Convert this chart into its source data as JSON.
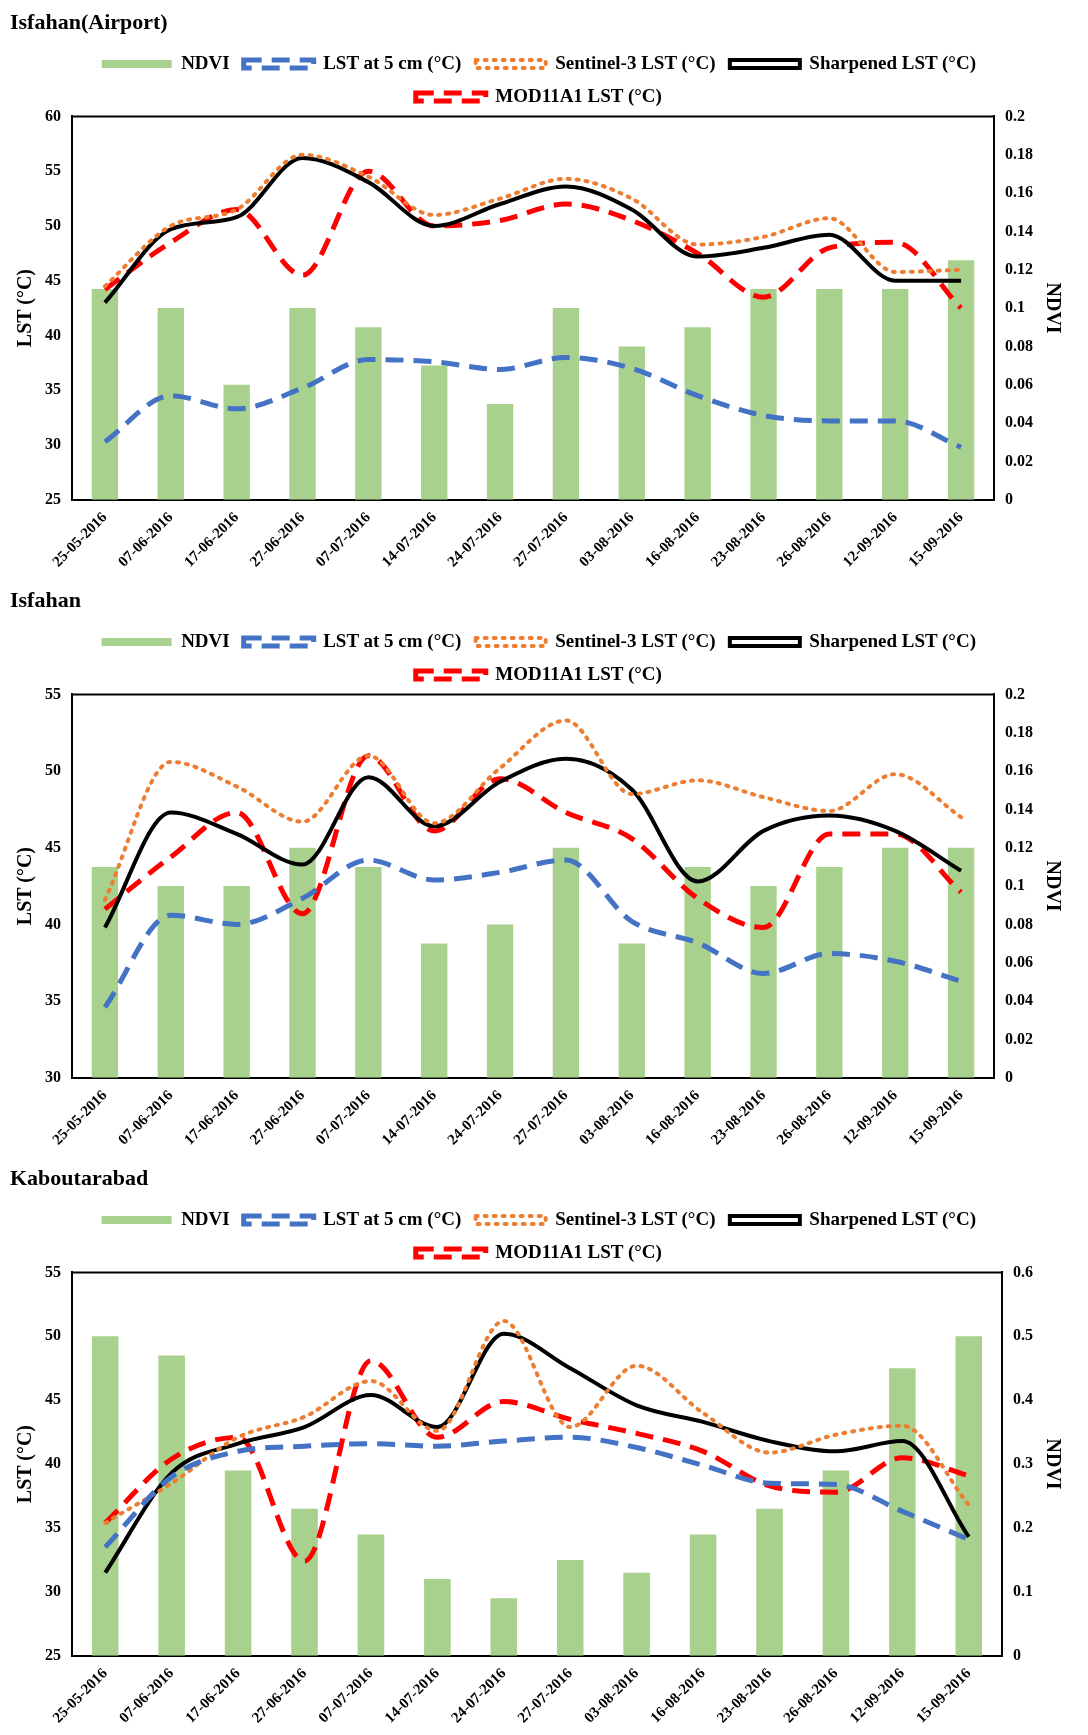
{
  "chart_data": [
    {
      "type": "line",
      "title": "Isfahan(Airport)",
      "ylabel": "LST (°C)",
      "y2label": "NDVI",
      "legend": "top",
      "marker": "none",
      "grid": false,
      "categories": [
        "25-05-2016",
        "07-06-2016",
        "17-06-2016",
        "27-06-2016",
        "07-07-2016",
        "14-07-2016",
        "24-07-2016",
        "27-07-2016",
        "03-08-2016",
        "16-08-2016",
        "23-08-2016",
        "26-08-2016",
        "12-09-2016",
        "15-09-2016"
      ],
      "ylim": [
        25,
        60
      ],
      "yticks": [
        25,
        30,
        35,
        40,
        45,
        50,
        55,
        60
      ],
      "y2lim": [
        0,
        0.2
      ],
      "y2ticks": [
        0,
        0.02,
        0.04,
        0.06,
        0.08,
        0.1,
        0.12,
        0.14,
        0.16,
        0.18,
        0.2
      ],
      "series": [
        {
          "name": "NDVI",
          "type": "bar",
          "axis": "y2",
          "color": "#a9d18e",
          "values": [
            0.11,
            0.1,
            0.06,
            0.1,
            0.09,
            0.07,
            0.05,
            0.1,
            0.08,
            0.09,
            0.11,
            0.11,
            0.11,
            0.125
          ]
        },
        {
          "name": "LST at 5 cm (°C)",
          "color": "#4472c4",
          "line_style": "dashed",
          "values": [
            30.3,
            34.5,
            33.3,
            35.2,
            37.8,
            37.6,
            36.9,
            38,
            37,
            34.5,
            32.7,
            32.2,
            32.2,
            29.8
          ]
        },
        {
          "name": "Sentinel-3 LST (°C)",
          "color": "#ed7d31",
          "line_style": "dotted",
          "values": [
            44.5,
            50,
            51.5,
            56.5,
            54.5,
            51,
            52.5,
            54.3,
            52.5,
            48.3,
            49,
            50.7,
            45.8,
            46
          ]
        },
        {
          "name": "Sharpened LST (°C)",
          "color": "#000000",
          "line_style": "solid",
          "values": [
            43,
            49.7,
            50.8,
            56.2,
            54,
            50,
            52,
            53.6,
            51.5,
            47.2,
            48,
            49.2,
            45,
            45
          ]
        },
        {
          "name": "MOD11A1 LST (°C)",
          "color": "#ff0000",
          "line_style": "dashed",
          "values": [
            44.2,
            48.5,
            51.5,
            45.5,
            55,
            50,
            50.5,
            52,
            50.5,
            47.5,
            43.5,
            48,
            48.5,
            42.5
          ]
        }
      ]
    },
    {
      "type": "line",
      "title": "Isfahan",
      "ylabel": "LST (°C)",
      "y2label": "NDVI",
      "legend": "top",
      "marker": "none",
      "grid": false,
      "categories": [
        "25-05-2016",
        "07-06-2016",
        "17-06-2016",
        "27-06-2016",
        "07-07-2016",
        "14-07-2016",
        "24-07-2016",
        "27-07-2016",
        "03-08-2016",
        "16-08-2016",
        "23-08-2016",
        "26-08-2016",
        "12-09-2016",
        "15-09-2016"
      ],
      "ylim": [
        30,
        55
      ],
      "yticks": [
        30,
        35,
        40,
        45,
        50,
        55
      ],
      "y2lim": [
        0,
        0.2
      ],
      "y2ticks": [
        0,
        0.02,
        0.04,
        0.06,
        0.08,
        0.1,
        0.12,
        0.14,
        0.16,
        0.18,
        0.2
      ],
      "series": [
        {
          "name": "NDVI",
          "type": "bar",
          "axis": "y2",
          "color": "#a9d18e",
          "values": [
            0.11,
            0.1,
            0.1,
            0.12,
            0.11,
            0.07,
            0.08,
            0.12,
            0.07,
            0.11,
            0.1,
            0.11,
            0.12,
            0.12
          ]
        },
        {
          "name": "LST at 5 cm (°C)",
          "color": "#4472c4",
          "line_style": "dashed",
          "values": [
            34.6,
            40.6,
            40,
            41.7,
            44.2,
            42.9,
            43.4,
            44.2,
            40.2,
            38.8,
            36.8,
            38.1,
            37.6,
            36.3
          ]
        },
        {
          "name": "Sentinel-3 LST (°C)",
          "color": "#ed7d31",
          "line_style": "dotted",
          "values": [
            41.6,
            50.6,
            49,
            46.7,
            51,
            46.6,
            50.2,
            53.3,
            48.5,
            49.4,
            48.3,
            47.4,
            49.8,
            47
          ]
        },
        {
          "name": "Sharpened LST (°C)",
          "color": "#000000",
          "line_style": "solid",
          "values": [
            39.8,
            47.3,
            45.9,
            43.9,
            49.6,
            46.4,
            49.3,
            50.8,
            48.8,
            42.8,
            46.1,
            47.1,
            46.1,
            43.5
          ]
        },
        {
          "name": "MOD11A1 LST (°C)",
          "color": "#ff0000",
          "line_style": "dashed",
          "values": [
            41,
            44.4,
            47.3,
            40.7,
            51,
            46.1,
            49.5,
            47.3,
            45.6,
            41.7,
            39.8,
            45.9,
            45.9,
            42.1
          ]
        }
      ]
    },
    {
      "type": "line",
      "title": "Kaboutarabad",
      "ylabel": "LST (°C)",
      "y2label": "NDVI",
      "legend": "top",
      "marker": "none",
      "grid": false,
      "categories": [
        "25-05-2016",
        "07-06-2016",
        "17-06-2016",
        "27-06-2016",
        "07-07-2016",
        "14-07-2016",
        "24-07-2016",
        "27-07-2016",
        "03-08-2016",
        "16-08-2016",
        "23-08-2016",
        "26-08-2016",
        "12-09-2016",
        "15-09-2016"
      ],
      "ylim": [
        25,
        55
      ],
      "yticks": [
        25,
        30,
        35,
        40,
        45,
        50,
        55
      ],
      "y2lim": [
        0,
        0.6
      ],
      "y2ticks": [
        0,
        0.1,
        0.2,
        0.3,
        0.4,
        0.5,
        0.6
      ],
      "series": [
        {
          "name": "NDVI",
          "type": "bar",
          "axis": "y2",
          "color": "#a9d18e",
          "values": [
            0.5,
            0.47,
            0.29,
            0.23,
            0.19,
            0.12,
            0.09,
            0.15,
            0.13,
            0.19,
            0.23,
            0.29,
            0.45,
            0.5
          ]
        },
        {
          "name": "LST at 5 cm (°C)",
          "color": "#4472c4",
          "line_style": "dashed",
          "values": [
            33.5,
            39,
            41,
            41.4,
            41.6,
            41.4,
            41.8,
            42.1,
            41.3,
            39.9,
            38.5,
            38.4,
            36.3,
            34.1
          ]
        },
        {
          "name": "Sentinel-3 LST (°C)",
          "color": "#ed7d31",
          "line_style": "dotted",
          "values": [
            35.4,
            38.5,
            42.1,
            43.7,
            46.5,
            42.6,
            51.2,
            42.9,
            47.7,
            44,
            40.9,
            42.3,
            43,
            36.8
          ]
        },
        {
          "name": "Sharpened LST (°C)",
          "color": "#000000",
          "line_style": "solid",
          "values": [
            31.5,
            39.3,
            41.6,
            42.9,
            45.4,
            42.9,
            50.2,
            47.5,
            44.6,
            43.3,
            41.8,
            41,
            41.8,
            34.3
          ]
        },
        {
          "name": "MOD11A1 LST (°C)",
          "color": "#ff0000",
          "line_style": "dashed",
          "values": [
            35.4,
            40.4,
            42.1,
            32.4,
            48.1,
            42.1,
            44.9,
            43.5,
            42.4,
            41,
            38.3,
            37.8,
            40.5,
            39.1
          ]
        }
      ]
    }
  ]
}
